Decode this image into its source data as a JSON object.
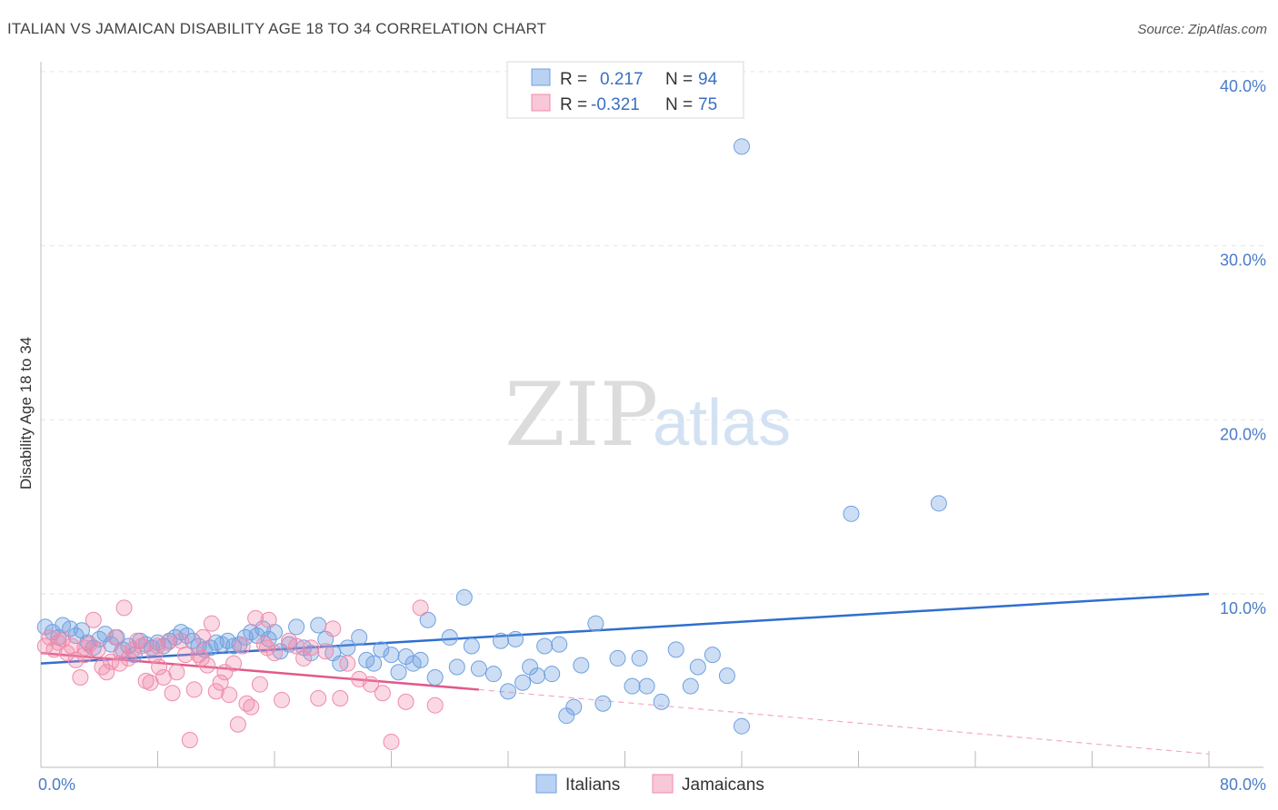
{
  "title": "ITALIAN VS JAMAICAN DISABILITY AGE 18 TO 34 CORRELATION CHART",
  "source": "Source: ZipAtlas.com",
  "watermark": {
    "zip": "ZIP",
    "atlas": "atlas"
  },
  "colors": {
    "blue": "#6fa0e0",
    "blue_line": "#2f6fce",
    "pink": "#f08aaa",
    "pink_line": "#e05a8a",
    "grid": "#e6e6e6",
    "tick": "#4a7cc9"
  },
  "legend": {
    "r_label": "R =",
    "n_label": "N =",
    "rows": [
      {
        "r": "0.217",
        "n": "94",
        "color": "blue"
      },
      {
        "r": "-0.321",
        "n": "75",
        "color": "pink"
      }
    ]
  },
  "chart_data": {
    "type": "scatter",
    "title": "ITALIAN VS JAMAICAN DISABILITY AGE 18 TO 34 CORRELATION CHART",
    "xlabel": "",
    "ylabel": "Disability Age 18 to 34",
    "xlim": [
      0,
      80
    ],
    "ylim": [
      0,
      42
    ],
    "x_tick_labels": [
      "0.0%",
      "80.0%"
    ],
    "y_ticks": [
      10,
      20,
      30,
      40
    ],
    "y_tick_labels": [
      "10.0%",
      "20.0%",
      "30.0%",
      "40.0%"
    ],
    "grid": true,
    "series": [
      {
        "name": "Italians",
        "color": "blue",
        "trend": {
          "x": [
            0,
            80
          ],
          "y": [
            6.0,
            10.0
          ]
        },
        "points": [
          [
            0.3,
            8.1
          ],
          [
            0.8,
            7.8
          ],
          [
            1.2,
            7.5
          ],
          [
            1.5,
            8.2
          ],
          [
            2.0,
            8.0
          ],
          [
            2.4,
            7.6
          ],
          [
            2.8,
            7.9
          ],
          [
            3.2,
            7.2
          ],
          [
            3.6,
            6.9
          ],
          [
            4.0,
            7.4
          ],
          [
            4.4,
            7.7
          ],
          [
            4.8,
            7.1
          ],
          [
            5.2,
            7.5
          ],
          [
            5.6,
            6.8
          ],
          [
            6.0,
            7.0
          ],
          [
            6.4,
            6.5
          ],
          [
            6.8,
            7.3
          ],
          [
            7.2,
            7.1
          ],
          [
            7.6,
            6.9
          ],
          [
            8.0,
            7.2
          ],
          [
            8.4,
            7.0
          ],
          [
            8.8,
            7.3
          ],
          [
            9.2,
            7.5
          ],
          [
            9.6,
            7.8
          ],
          [
            10.0,
            7.6
          ],
          [
            10.4,
            7.3
          ],
          [
            10.8,
            7.0
          ],
          [
            11.2,
            6.8
          ],
          [
            11.6,
            6.9
          ],
          [
            12.0,
            7.2
          ],
          [
            12.4,
            7.1
          ],
          [
            12.8,
            7.3
          ],
          [
            13.2,
            7.0
          ],
          [
            13.6,
            7.1
          ],
          [
            14.0,
            7.5
          ],
          [
            14.4,
            7.8
          ],
          [
            14.8,
            7.6
          ],
          [
            15.2,
            8.0
          ],
          [
            15.6,
            7.4
          ],
          [
            16.0,
            7.8
          ],
          [
            16.4,
            6.7
          ],
          [
            17.0,
            7.1
          ],
          [
            17.5,
            8.1
          ],
          [
            18.0,
            6.9
          ],
          [
            18.5,
            6.6
          ],
          [
            19.0,
            8.2
          ],
          [
            19.5,
            7.4
          ],
          [
            20.0,
            6.6
          ],
          [
            20.5,
            6.0
          ],
          [
            21.0,
            6.9
          ],
          [
            21.8,
            7.5
          ],
          [
            22.3,
            6.2
          ],
          [
            22.8,
            6.0
          ],
          [
            23.3,
            6.8
          ],
          [
            24.0,
            6.5
          ],
          [
            24.5,
            5.5
          ],
          [
            25.0,
            6.4
          ],
          [
            25.5,
            6.0
          ],
          [
            26.0,
            6.2
          ],
          [
            26.5,
            8.5
          ],
          [
            27.0,
            5.2
          ],
          [
            28.0,
            7.5
          ],
          [
            28.5,
            5.8
          ],
          [
            29.0,
            9.8
          ],
          [
            29.5,
            7.0
          ],
          [
            30.0,
            5.7
          ],
          [
            31.0,
            5.4
          ],
          [
            31.5,
            7.3
          ],
          [
            32.0,
            4.4
          ],
          [
            32.5,
            7.4
          ],
          [
            33.0,
            4.9
          ],
          [
            33.5,
            5.8
          ],
          [
            34.0,
            5.3
          ],
          [
            34.5,
            7.0
          ],
          [
            35.0,
            5.4
          ],
          [
            35.5,
            7.1
          ],
          [
            36.0,
            3.0
          ],
          [
            36.5,
            3.5
          ],
          [
            37.0,
            5.9
          ],
          [
            38.0,
            8.3
          ],
          [
            38.5,
            3.7
          ],
          [
            39.5,
            6.3
          ],
          [
            40.5,
            4.7
          ],
          [
            41.0,
            6.3
          ],
          [
            41.5,
            4.7
          ],
          [
            42.5,
            3.8
          ],
          [
            43.5,
            6.8
          ],
          [
            44.5,
            4.7
          ],
          [
            45.0,
            5.8
          ],
          [
            46.0,
            6.5
          ],
          [
            47.0,
            5.3
          ],
          [
            48.0,
            2.4
          ],
          [
            48.0,
            35.7
          ],
          [
            55.5,
            14.6
          ],
          [
            61.5,
            15.2
          ]
        ]
      },
      {
        "name": "Jamaicans",
        "color": "pink",
        "trend": {
          "x": [
            0,
            30
          ],
          "y": [
            6.6,
            4.5
          ]
        },
        "trend_dashed": {
          "x": [
            30,
            80
          ],
          "y": [
            4.5,
            0.8
          ]
        },
        "points": [
          [
            0.3,
            7.0
          ],
          [
            0.6,
            7.5
          ],
          [
            0.9,
            6.8
          ],
          [
            1.2,
            7.2
          ],
          [
            1.5,
            7.4
          ],
          [
            1.8,
            6.6
          ],
          [
            2.1,
            7.0
          ],
          [
            2.4,
            6.2
          ],
          [
            2.7,
            5.2
          ],
          [
            3.0,
            6.5
          ],
          [
            3.3,
            7.1
          ],
          [
            3.6,
            8.5
          ],
          [
            3.9,
            6.8
          ],
          [
            4.2,
            5.8
          ],
          [
            4.5,
            5.5
          ],
          [
            4.8,
            6.1
          ],
          [
            5.1,
            7.5
          ],
          [
            5.4,
            6.0
          ],
          [
            5.7,
            9.2
          ],
          [
            6.0,
            6.3
          ],
          [
            6.3,
            6.8
          ],
          [
            6.6,
            7.3
          ],
          [
            6.9,
            7.0
          ],
          [
            7.2,
            5.0
          ],
          [
            7.5,
            4.9
          ],
          [
            7.8,
            6.5
          ],
          [
            8.1,
            5.8
          ],
          [
            8.4,
            5.2
          ],
          [
            8.7,
            7.2
          ],
          [
            9.0,
            4.3
          ],
          [
            9.3,
            5.5
          ],
          [
            9.6,
            7.3
          ],
          [
            9.9,
            6.5
          ],
          [
            10.2,
            1.6
          ],
          [
            10.5,
            4.5
          ],
          [
            10.8,
            6.5
          ],
          [
            11.1,
            7.5
          ],
          [
            11.4,
            5.9
          ],
          [
            11.7,
            8.3
          ],
          [
            12.0,
            4.4
          ],
          [
            12.3,
            4.9
          ],
          [
            12.6,
            5.5
          ],
          [
            12.9,
            4.2
          ],
          [
            13.2,
            6.0
          ],
          [
            13.5,
            2.5
          ],
          [
            13.8,
            7.0
          ],
          [
            14.1,
            3.7
          ],
          [
            14.4,
            3.5
          ],
          [
            14.7,
            8.6
          ],
          [
            15.0,
            4.8
          ],
          [
            15.3,
            7.1
          ],
          [
            15.6,
            8.5
          ],
          [
            16.0,
            6.6
          ],
          [
            16.5,
            3.9
          ],
          [
            17.0,
            7.3
          ],
          [
            17.5,
            7.0
          ],
          [
            18.0,
            6.3
          ],
          [
            18.5,
            6.9
          ],
          [
            19.0,
            4.0
          ],
          [
            19.5,
            6.7
          ],
          [
            20.0,
            8.0
          ],
          [
            20.5,
            4.0
          ],
          [
            21.0,
            6.0
          ],
          [
            21.8,
            5.1
          ],
          [
            22.6,
            4.8
          ],
          [
            23.4,
            4.3
          ],
          [
            24.0,
            1.5
          ],
          [
            25.0,
            3.8
          ],
          [
            26.0,
            9.2
          ],
          [
            27.0,
            3.6
          ],
          [
            3.0,
            6.9
          ],
          [
            5.5,
            6.6
          ],
          [
            8.0,
            7.0
          ],
          [
            11.0,
            6.3
          ],
          [
            15.5,
            6.9
          ]
        ]
      }
    ]
  },
  "bottom_legend": [
    {
      "label": "Italians",
      "color": "blue"
    },
    {
      "label": "Jamaicans",
      "color": "pink"
    }
  ]
}
